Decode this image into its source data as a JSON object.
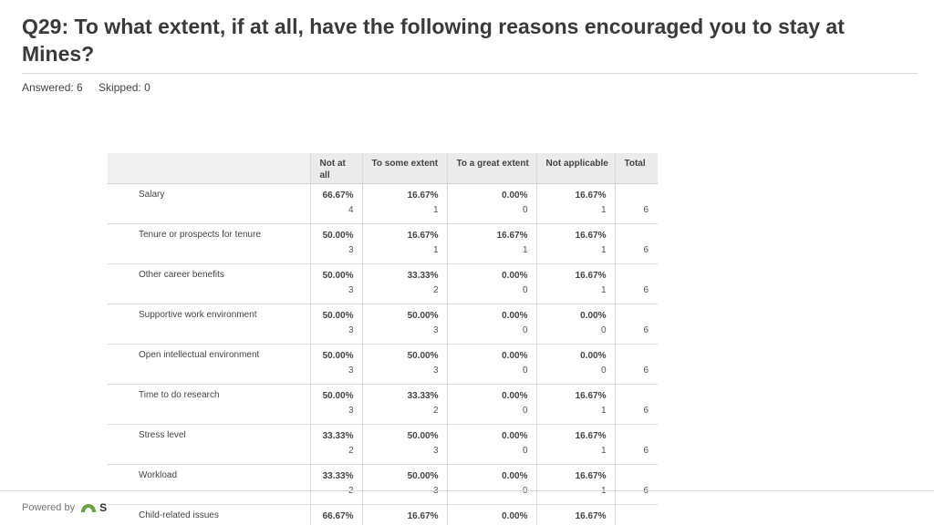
{
  "title": "Q29: To what extent, if at all, have the following reasons encouraged you to stay at Mines?",
  "stats": {
    "answered": "Answered: 6",
    "skipped": "Skipped: 0"
  },
  "table": {
    "headers": [
      "",
      "Not at all",
      "To some extent",
      "To a great extent",
      "Not applicable",
      "Total"
    ],
    "rows": [
      {
        "label": "Salary",
        "cells": [
          [
            "66.67%",
            "4"
          ],
          [
            "16.67%",
            "1"
          ],
          [
            "0.00%",
            "0"
          ],
          [
            "16.67%",
            "1"
          ]
        ],
        "total": "6"
      },
      {
        "label": "Tenure or prospects for tenure",
        "cells": [
          [
            "50.00%",
            "3"
          ],
          [
            "16.67%",
            "1"
          ],
          [
            "16.67%",
            "1"
          ],
          [
            "16.67%",
            "1"
          ]
        ],
        "total": "6"
      },
      {
        "label": "Other career benefits",
        "cells": [
          [
            "50.00%",
            "3"
          ],
          [
            "33.33%",
            "2"
          ],
          [
            "0.00%",
            "0"
          ],
          [
            "16.67%",
            "1"
          ]
        ],
        "total": "6"
      },
      {
        "label": "Supportive work environment",
        "cells": [
          [
            "50.00%",
            "3"
          ],
          [
            "50.00%",
            "3"
          ],
          [
            "0.00%",
            "0"
          ],
          [
            "0.00%",
            "0"
          ]
        ],
        "total": "6"
      },
      {
        "label": "Open intellectual environment",
        "cells": [
          [
            "50.00%",
            "3"
          ],
          [
            "50.00%",
            "3"
          ],
          [
            "0.00%",
            "0"
          ],
          [
            "0.00%",
            "0"
          ]
        ],
        "total": "6"
      },
      {
        "label": "Time to do research",
        "cells": [
          [
            "50.00%",
            "3"
          ],
          [
            "33.33%",
            "2"
          ],
          [
            "0.00%",
            "0"
          ],
          [
            "16.67%",
            "1"
          ]
        ],
        "total": "6"
      },
      {
        "label": "Stress level",
        "cells": [
          [
            "33.33%",
            "2"
          ],
          [
            "50.00%",
            "3"
          ],
          [
            "0.00%",
            "0"
          ],
          [
            "16.67%",
            "1"
          ]
        ],
        "total": "6"
      },
      {
        "label": "Workload",
        "cells": [
          [
            "33.33%",
            "2"
          ],
          [
            "50.00%",
            "3"
          ],
          [
            "0.00%",
            "0"
          ],
          [
            "16.67%",
            "1"
          ]
        ],
        "total": "6"
      },
      {
        "label": "Child-related issues",
        "cells": [
          [
            "66.67%",
            ""
          ],
          [
            "16.67%",
            ""
          ],
          [
            "0.00%",
            ""
          ],
          [
            "16.67%",
            ""
          ]
        ],
        "total": ""
      }
    ]
  },
  "footer": {
    "powered_by": "Powered by",
    "brand_partial": "S"
  },
  "colors": {
    "logo": "#6aa43c",
    "header_bg": "#ebebeb"
  }
}
